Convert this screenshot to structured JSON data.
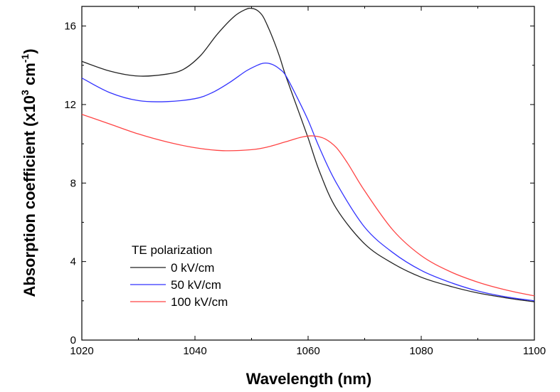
{
  "chart_data": {
    "type": "line",
    "xlabel": "Wavelength (nm)",
    "ylabel_main": "Absorption coefficient (x10",
    "ylabel_sup1": "3",
    "ylabel_mid": " cm",
    "ylabel_sup2": "-1",
    "ylabel_end": ")",
    "xlim": [
      1020,
      1100
    ],
    "ylim": [
      0,
      17
    ],
    "x_ticks": [
      1020,
      1040,
      1060,
      1080,
      1100
    ],
    "x_tick_labels": [
      "1020",
      "1040",
      "1060",
      "1080",
      "1100"
    ],
    "y_ticks": [
      0,
      4,
      8,
      12,
      16
    ],
    "y_tick_labels": [
      "0",
      "4",
      "8",
      "12",
      "16"
    ],
    "grid": false,
    "legend_title": "TE polarization",
    "legend_position": "bottom-left",
    "series": [
      {
        "name": "0 kV/cm",
        "color": "#222222",
        "x": [
          1020,
          1025,
          1030,
          1035,
          1038,
          1041,
          1044,
          1047,
          1049,
          1050,
          1051,
          1052,
          1053,
          1054,
          1055,
          1056,
          1058,
          1060,
          1062,
          1065,
          1070,
          1075,
          1080,
          1085,
          1090,
          1095,
          1100
        ],
        "y": [
          14.2,
          13.7,
          13.45,
          13.55,
          13.8,
          14.5,
          15.6,
          16.5,
          16.85,
          16.9,
          16.8,
          16.5,
          15.9,
          15.2,
          14.4,
          13.5,
          11.9,
          10.3,
          8.6,
          6.7,
          4.9,
          3.9,
          3.2,
          2.75,
          2.4,
          2.15,
          1.95
        ]
      },
      {
        "name": "50 kV/cm",
        "color": "#3333ff",
        "x": [
          1020,
          1025,
          1030,
          1035,
          1040,
          1043,
          1046,
          1049,
          1051,
          1052,
          1053,
          1054,
          1055,
          1056,
          1058,
          1060,
          1062,
          1065,
          1070,
          1075,
          1080,
          1085,
          1090,
          1095,
          1100
        ],
        "y": [
          13.35,
          12.6,
          12.2,
          12.15,
          12.3,
          12.6,
          13.1,
          13.7,
          14.0,
          14.1,
          14.1,
          14.0,
          13.8,
          13.5,
          12.4,
          11.2,
          9.8,
          8.0,
          5.75,
          4.45,
          3.55,
          2.95,
          2.5,
          2.2,
          2.0
        ]
      },
      {
        "name": "100 kV/cm",
        "color": "#ff4444",
        "x": [
          1020,
          1025,
          1030,
          1035,
          1040,
          1045,
          1050,
          1053,
          1056,
          1059,
          1061,
          1063,
          1065,
          1067,
          1070,
          1075,
          1080,
          1085,
          1090,
          1095,
          1100
        ],
        "y": [
          11.5,
          11.0,
          10.5,
          10.1,
          9.8,
          9.65,
          9.7,
          9.85,
          10.1,
          10.35,
          10.4,
          10.25,
          9.8,
          9.0,
          7.6,
          5.6,
          4.3,
          3.5,
          2.95,
          2.55,
          2.25
        ]
      }
    ]
  }
}
